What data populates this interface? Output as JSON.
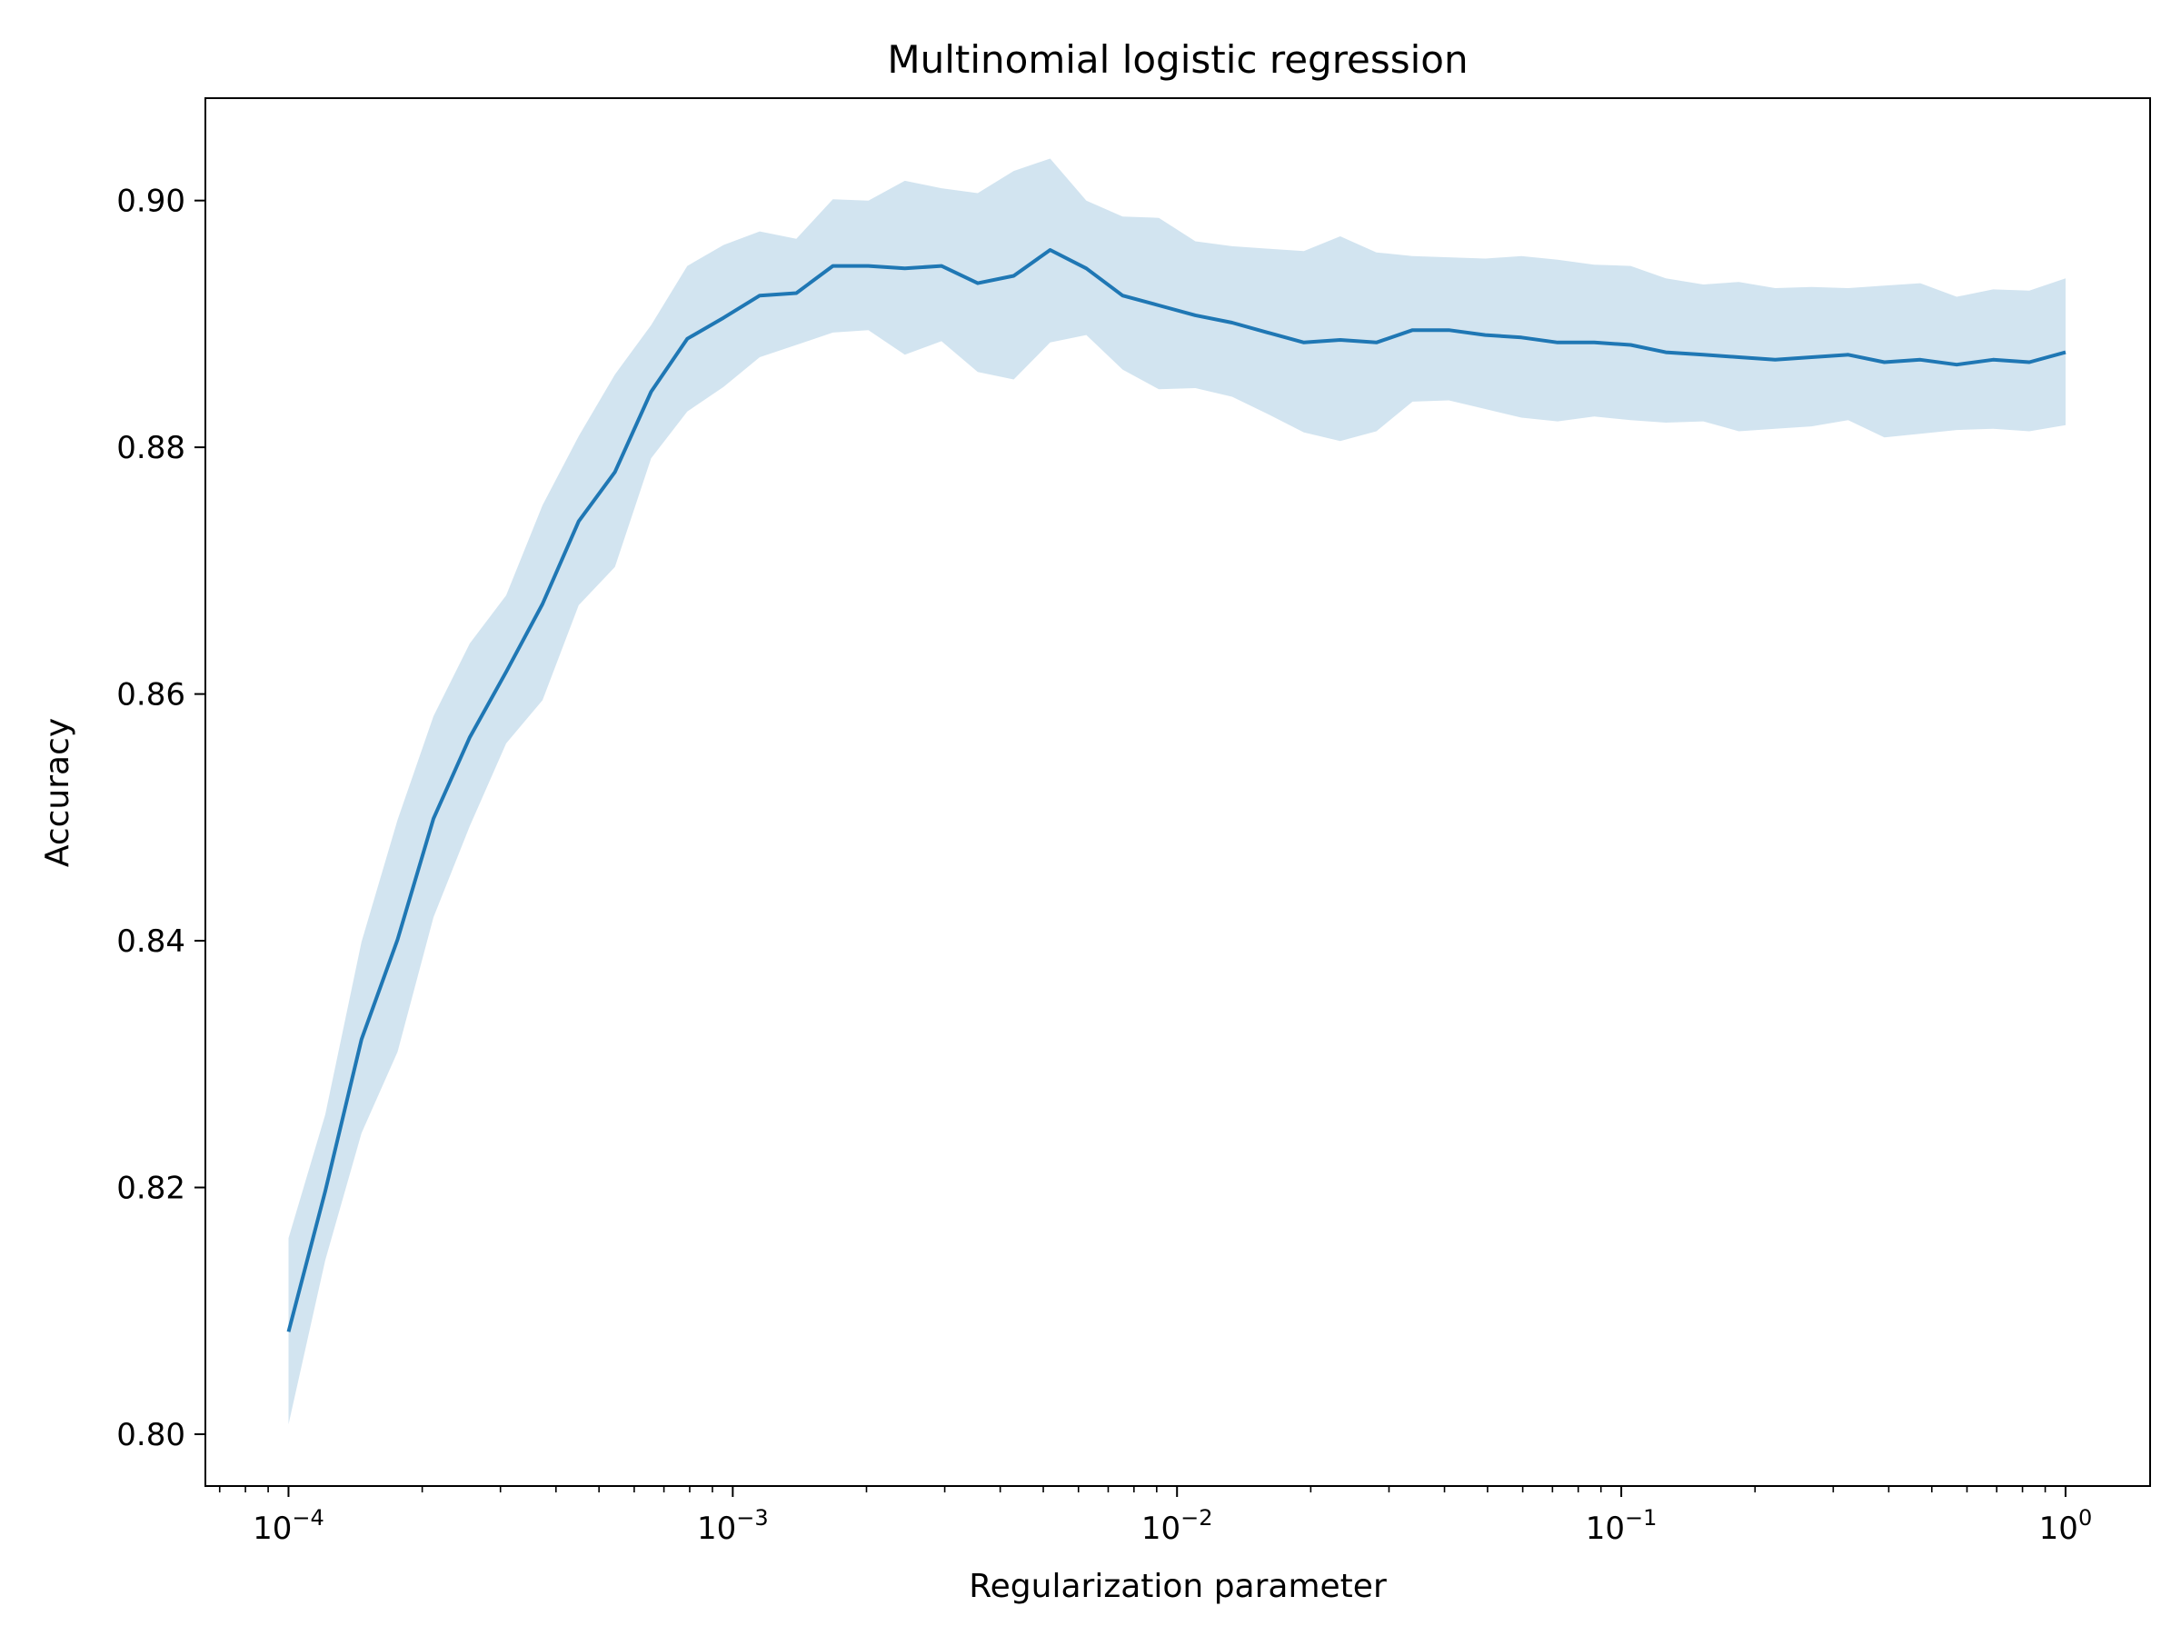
{
  "chart_data": {
    "type": "line",
    "title": "Multinomial logistic regression",
    "xlabel": "Regularization parameter",
    "ylabel": "Accuracy",
    "x_scale": "log",
    "xlim": [
      6.5e-05,
      1.55
    ],
    "ylim": [
      0.7958,
      0.9083
    ],
    "grid": false,
    "x_ticks": [
      {
        "value": 0.0001,
        "base": "10",
        "exp": "−4"
      },
      {
        "value": 0.001,
        "base": "10",
        "exp": "−3"
      },
      {
        "value": 0.01,
        "base": "10",
        "exp": "−2"
      },
      {
        "value": 0.1,
        "base": "10",
        "exp": "−1"
      },
      {
        "value": 1,
        "base": "10",
        "exp": "0"
      }
    ],
    "y_ticks": [
      {
        "value": 0.8,
        "label": "0.80"
      },
      {
        "value": 0.82,
        "label": "0.82"
      },
      {
        "value": 0.84,
        "label": "0.84"
      },
      {
        "value": 0.86,
        "label": "0.86"
      },
      {
        "value": 0.88,
        "label": "0.88"
      },
      {
        "value": 0.9,
        "label": "0.90"
      }
    ],
    "colors": {
      "line": "#1f77b4",
      "band": "#1f77b4",
      "band_opacity": 0.2
    },
    "series": [
      {
        "x": [
          0.0001,
          0.000121,
          0.000146,
          0.000176,
          0.000212,
          0.000256,
          0.000309,
          0.000373,
          0.00045,
          0.000543,
          0.000655,
          0.00079,
          0.000954,
          0.00115,
          0.00139,
          0.00168,
          0.00202,
          0.00244,
          0.00295,
          0.00356,
          0.00429,
          0.00518,
          0.00625,
          0.00754,
          0.0091,
          0.011,
          0.0133,
          0.016,
          0.0193,
          0.0233,
          0.0281,
          0.0339,
          0.0409,
          0.0494,
          0.0596,
          0.0719,
          0.0869,
          0.105,
          0.126,
          0.153,
          0.184,
          0.222,
          0.268,
          0.324,
          0.391,
          0.471,
          0.569,
          0.687,
          0.829,
          1.0
        ],
        "y": [
          0.8083,
          0.8197,
          0.832,
          0.8401,
          0.8499,
          0.8565,
          0.8618,
          0.8673,
          0.874,
          0.878,
          0.8845,
          0.8888,
          0.8905,
          0.8923,
          0.8925,
          0.8947,
          0.8947,
          0.8945,
          0.8947,
          0.8933,
          0.8939,
          0.896,
          0.8945,
          0.8923,
          0.8915,
          0.8907,
          0.8901,
          0.8893,
          0.8885,
          0.8887,
          0.8885,
          0.8895,
          0.8895,
          0.8891,
          0.8889,
          0.8885,
          0.8885,
          0.8883,
          0.8877,
          0.8875,
          0.8873,
          0.8871,
          0.8873,
          0.8875,
          0.8869,
          0.8871,
          0.8867,
          0.8871,
          0.8869,
          0.8877
        ],
        "lower": [
          0.8008,
          0.8141,
          0.8244,
          0.831,
          0.8419,
          0.8493,
          0.856,
          0.8595,
          0.8672,
          0.8703,
          0.8791,
          0.8829,
          0.8849,
          0.8873,
          0.8883,
          0.8893,
          0.8895,
          0.8875,
          0.8886,
          0.8861,
          0.8855,
          0.8885,
          0.8891,
          0.8863,
          0.8847,
          0.8848,
          0.8841,
          0.8827,
          0.8812,
          0.8805,
          0.8813,
          0.8837,
          0.8838,
          0.8831,
          0.8824,
          0.8821,
          0.8825,
          0.8822,
          0.882,
          0.8821,
          0.8813,
          0.8815,
          0.8817,
          0.8822,
          0.8808,
          0.8811,
          0.8814,
          0.8815,
          0.8813,
          0.8818
        ],
        "upper": [
          0.8159,
          0.8259,
          0.8399,
          0.8498,
          0.8582,
          0.8641,
          0.868,
          0.8753,
          0.8809,
          0.8859,
          0.8899,
          0.8947,
          0.8964,
          0.8975,
          0.8969,
          0.9001,
          0.9,
          0.9016,
          0.901,
          0.9006,
          0.9024,
          0.9034,
          0.9,
          0.8987,
          0.8986,
          0.8967,
          0.8963,
          0.8961,
          0.8959,
          0.8971,
          0.8958,
          0.8955,
          0.8954,
          0.8953,
          0.8955,
          0.8952,
          0.8948,
          0.8947,
          0.8937,
          0.8932,
          0.8934,
          0.8929,
          0.893,
          0.8929,
          0.8931,
          0.8933,
          0.8922,
          0.8928,
          0.8927,
          0.8937
        ]
      }
    ]
  }
}
